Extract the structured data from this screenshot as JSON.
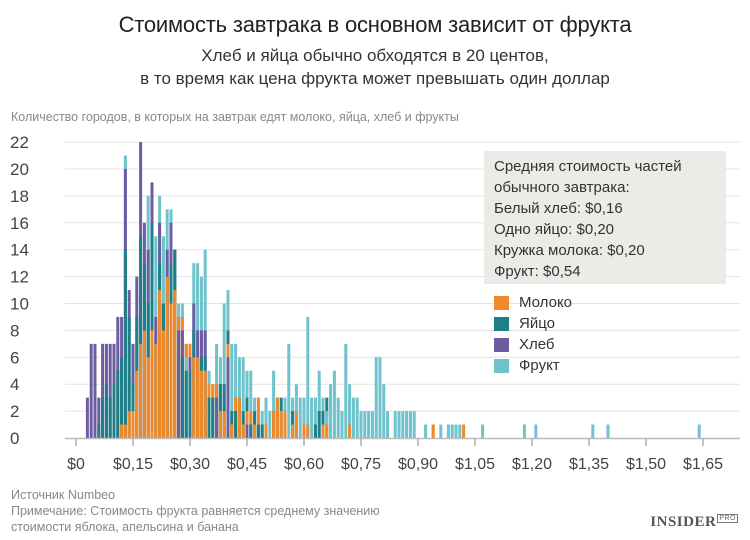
{
  "header": {
    "title": "Стоимость завтрака в основном зависит от фрукта",
    "subtitle_line1": "Хлеб и яйца обычно обходятся в 20 центов,",
    "subtitle_line2": "в то время как цена фрукта может превышать один доллар"
  },
  "info_box": {
    "line1": "Средняя стоимость частей",
    "line2": "обычного завтрака:",
    "line3": "Белый хлеб: $0,16",
    "line4": "Одно яйцо: $0,20",
    "line5": "Кружка молока: $0,20",
    "line6": "Фрукт: $0,54"
  },
  "legend": [
    {
      "label": "Молоко",
      "color": "#f0892a"
    },
    {
      "label": "Яйцо",
      "color": "#1f7f86"
    },
    {
      "label": "Хлеб",
      "color": "#6e5ca3"
    },
    {
      "label": "Фрукт",
      "color": "#6ec3cc"
    }
  ],
  "footer": {
    "source": "Источник Numbeo",
    "note1": "Примечание: Стоимость фрукта равняется среднему значению",
    "note2": "стоимости яблока, апельсина и банана",
    "logo": "INSIDER",
    "logo_suffix": "PRO"
  },
  "chart_data": {
    "type": "bar",
    "title": "Стоимость завтрака в основном зависит от фрукта",
    "ylabel": "Количество городов, в которых на завтрак едят молоко, яйца, хлеб и фрукты",
    "xlabel": "",
    "bin_width_dollars": 0.01,
    "overlay": true,
    "xlim": [
      0,
      1.7
    ],
    "ylim": [
      0,
      22
    ],
    "yticks": [
      0,
      2,
      4,
      6,
      8,
      10,
      12,
      14,
      16,
      18,
      20,
      22
    ],
    "xticks": [
      0,
      0.15,
      0.3,
      0.45,
      0.6,
      0.75,
      0.9,
      1.05,
      1.2,
      1.35,
      1.5,
      1.65
    ],
    "xtick_labels": [
      "$0",
      "$0,15",
      "$0,30",
      "$0,45",
      "$0,60",
      "$0,75",
      "$0,90",
      "$1,05",
      "$1,20",
      "$1,35",
      "$1,50",
      "$1,65"
    ],
    "grid": true,
    "legend_position": "right",
    "series": [
      {
        "name": "Фрукт",
        "color": "#6ec3cc",
        "points": [
          [
            0.13,
            21
          ],
          [
            0.19,
            18
          ],
          [
            0.21,
            15
          ],
          [
            0.22,
            18
          ],
          [
            0.23,
            15
          ],
          [
            0.24,
            17
          ],
          [
            0.25,
            17
          ],
          [
            0.26,
            14
          ],
          [
            0.27,
            10
          ],
          [
            0.28,
            10
          ],
          [
            0.29,
            6
          ],
          [
            0.3,
            6
          ],
          [
            0.31,
            13
          ],
          [
            0.32,
            13
          ],
          [
            0.33,
            12
          ],
          [
            0.34,
            14
          ],
          [
            0.35,
            5
          ],
          [
            0.36,
            4
          ],
          [
            0.37,
            7
          ],
          [
            0.38,
            6
          ],
          [
            0.39,
            10
          ],
          [
            0.4,
            11
          ],
          [
            0.41,
            7
          ],
          [
            0.42,
            7
          ],
          [
            0.43,
            6
          ],
          [
            0.44,
            6
          ],
          [
            0.45,
            5
          ],
          [
            0.46,
            5
          ],
          [
            0.47,
            3
          ],
          [
            0.48,
            3
          ],
          [
            0.49,
            2
          ],
          [
            0.5,
            3
          ],
          [
            0.51,
            2
          ],
          [
            0.52,
            5
          ],
          [
            0.53,
            3
          ],
          [
            0.54,
            2
          ],
          [
            0.55,
            3
          ],
          [
            0.56,
            7
          ],
          [
            0.57,
            3
          ],
          [
            0.58,
            4
          ],
          [
            0.59,
            3
          ],
          [
            0.6,
            3
          ],
          [
            0.61,
            9
          ],
          [
            0.62,
            3
          ],
          [
            0.63,
            3
          ],
          [
            0.64,
            5
          ],
          [
            0.65,
            3
          ],
          [
            0.66,
            2
          ],
          [
            0.67,
            4
          ],
          [
            0.68,
            5
          ],
          [
            0.69,
            3
          ],
          [
            0.7,
            2
          ],
          [
            0.71,
            7
          ],
          [
            0.72,
            4
          ],
          [
            0.73,
            3
          ],
          [
            0.74,
            3
          ],
          [
            0.75,
            2
          ],
          [
            0.76,
            2
          ],
          [
            0.77,
            2
          ],
          [
            0.78,
            2
          ],
          [
            0.79,
            6
          ],
          [
            0.8,
            6
          ],
          [
            0.81,
            4
          ],
          [
            0.82,
            2
          ],
          [
            0.84,
            2
          ],
          [
            0.85,
            2
          ],
          [
            0.86,
            2
          ],
          [
            0.87,
            2
          ],
          [
            0.88,
            2
          ],
          [
            0.89,
            2
          ],
          [
            0.92,
            1
          ],
          [
            0.94,
            1
          ],
          [
            0.96,
            1
          ],
          [
            0.98,
            1
          ],
          [
            0.99,
            1
          ],
          [
            1.0,
            1
          ],
          [
            1.01,
            1
          ],
          [
            1.07,
            1
          ],
          [
            1.18,
            1
          ],
          [
            1.21,
            1
          ],
          [
            1.36,
            1
          ],
          [
            1.4,
            1
          ],
          [
            1.64,
            1
          ]
        ]
      },
      {
        "name": "Хлеб",
        "color": "#6e5ca3",
        "points": [
          [
            0.03,
            3
          ],
          [
            0.04,
            7
          ],
          [
            0.05,
            7
          ],
          [
            0.06,
            3
          ],
          [
            0.07,
            7
          ],
          [
            0.08,
            7
          ],
          [
            0.09,
            7
          ],
          [
            0.1,
            7
          ],
          [
            0.11,
            9
          ],
          [
            0.12,
            9
          ],
          [
            0.13,
            20
          ],
          [
            0.14,
            11
          ],
          [
            0.15,
            7
          ],
          [
            0.16,
            12
          ],
          [
            0.17,
            22
          ],
          [
            0.18,
            16
          ],
          [
            0.19,
            14
          ],
          [
            0.2,
            19
          ],
          [
            0.21,
            9
          ],
          [
            0.22,
            16
          ],
          [
            0.23,
            10
          ],
          [
            0.24,
            14
          ],
          [
            0.25,
            16
          ],
          [
            0.26,
            14
          ],
          [
            0.27,
            8
          ],
          [
            0.28,
            8
          ],
          [
            0.29,
            7
          ],
          [
            0.3,
            6
          ],
          [
            0.31,
            10
          ],
          [
            0.32,
            8
          ],
          [
            0.33,
            8
          ],
          [
            0.34,
            8
          ],
          [
            0.35,
            3
          ],
          [
            0.37,
            3
          ],
          [
            0.4,
            6
          ],
          [
            0.41,
            1
          ],
          [
            0.45,
            1
          ],
          [
            0.57,
            1
          ]
        ]
      },
      {
        "name": "Яйцо",
        "color": "#1f7f86",
        "points": [
          [
            0.06,
            1
          ],
          [
            0.07,
            3
          ],
          [
            0.08,
            4
          ],
          [
            0.09,
            3
          ],
          [
            0.1,
            4
          ],
          [
            0.11,
            5
          ],
          [
            0.12,
            6
          ],
          [
            0.13,
            14
          ],
          [
            0.14,
            9
          ],
          [
            0.15,
            4
          ],
          [
            0.16,
            9
          ],
          [
            0.17,
            15
          ],
          [
            0.18,
            13
          ],
          [
            0.19,
            10
          ],
          [
            0.2,
            16
          ],
          [
            0.21,
            7
          ],
          [
            0.22,
            13
          ],
          [
            0.23,
            10
          ],
          [
            0.24,
            12
          ],
          [
            0.25,
            13
          ],
          [
            0.26,
            14
          ],
          [
            0.27,
            9
          ],
          [
            0.28,
            6
          ],
          [
            0.29,
            5
          ],
          [
            0.3,
            5
          ],
          [
            0.31,
            8
          ],
          [
            0.32,
            6
          ],
          [
            0.33,
            6
          ],
          [
            0.34,
            6
          ],
          [
            0.35,
            3
          ],
          [
            0.36,
            3
          ],
          [
            0.37,
            4
          ],
          [
            0.38,
            4
          ],
          [
            0.39,
            4
          ],
          [
            0.4,
            8
          ],
          [
            0.41,
            2
          ],
          [
            0.42,
            2
          ],
          [
            0.43,
            3
          ],
          [
            0.44,
            2
          ],
          [
            0.45,
            3
          ],
          [
            0.46,
            1
          ],
          [
            0.47,
            2
          ],
          [
            0.48,
            1
          ],
          [
            0.49,
            1
          ],
          [
            0.52,
            2
          ],
          [
            0.53,
            3
          ],
          [
            0.54,
            3
          ],
          [
            0.57,
            2
          ],
          [
            0.63,
            1
          ],
          [
            0.64,
            2
          ],
          [
            0.65,
            2
          ],
          [
            0.66,
            3
          ]
        ]
      },
      {
        "name": "Молоко",
        "color": "#f0892a",
        "points": [
          [
            0.12,
            1
          ],
          [
            0.13,
            1
          ],
          [
            0.14,
            2
          ],
          [
            0.15,
            2
          ],
          [
            0.16,
            5
          ],
          [
            0.17,
            7
          ],
          [
            0.18,
            8
          ],
          [
            0.19,
            6
          ],
          [
            0.2,
            8
          ],
          [
            0.21,
            7
          ],
          [
            0.22,
            11
          ],
          [
            0.23,
            8
          ],
          [
            0.24,
            12
          ],
          [
            0.25,
            10
          ],
          [
            0.26,
            11
          ],
          [
            0.27,
            9
          ],
          [
            0.28,
            9
          ],
          [
            0.29,
            7
          ],
          [
            0.3,
            7
          ],
          [
            0.31,
            6
          ],
          [
            0.32,
            6
          ],
          [
            0.33,
            5
          ],
          [
            0.34,
            5
          ],
          [
            0.35,
            4
          ],
          [
            0.36,
            4
          ],
          [
            0.37,
            4
          ],
          [
            0.38,
            2
          ],
          [
            0.39,
            2
          ],
          [
            0.4,
            7
          ],
          [
            0.41,
            1
          ],
          [
            0.42,
            3
          ],
          [
            0.43,
            3
          ],
          [
            0.44,
            1
          ],
          [
            0.45,
            2
          ],
          [
            0.46,
            2
          ],
          [
            0.47,
            1
          ],
          [
            0.48,
            3
          ],
          [
            0.5,
            1
          ],
          [
            0.52,
            2
          ],
          [
            0.53,
            3
          ],
          [
            0.54,
            2
          ],
          [
            0.55,
            2
          ],
          [
            0.57,
            1
          ],
          [
            0.58,
            2
          ],
          [
            0.6,
            1
          ],
          [
            0.61,
            1
          ],
          [
            0.65,
            1
          ],
          [
            0.66,
            1
          ],
          [
            0.72,
            1
          ],
          [
            0.94,
            1
          ],
          [
            1.02,
            1
          ]
        ]
      }
    ],
    "draw_order": "per bin, tallest series behind, shorter in front"
  }
}
